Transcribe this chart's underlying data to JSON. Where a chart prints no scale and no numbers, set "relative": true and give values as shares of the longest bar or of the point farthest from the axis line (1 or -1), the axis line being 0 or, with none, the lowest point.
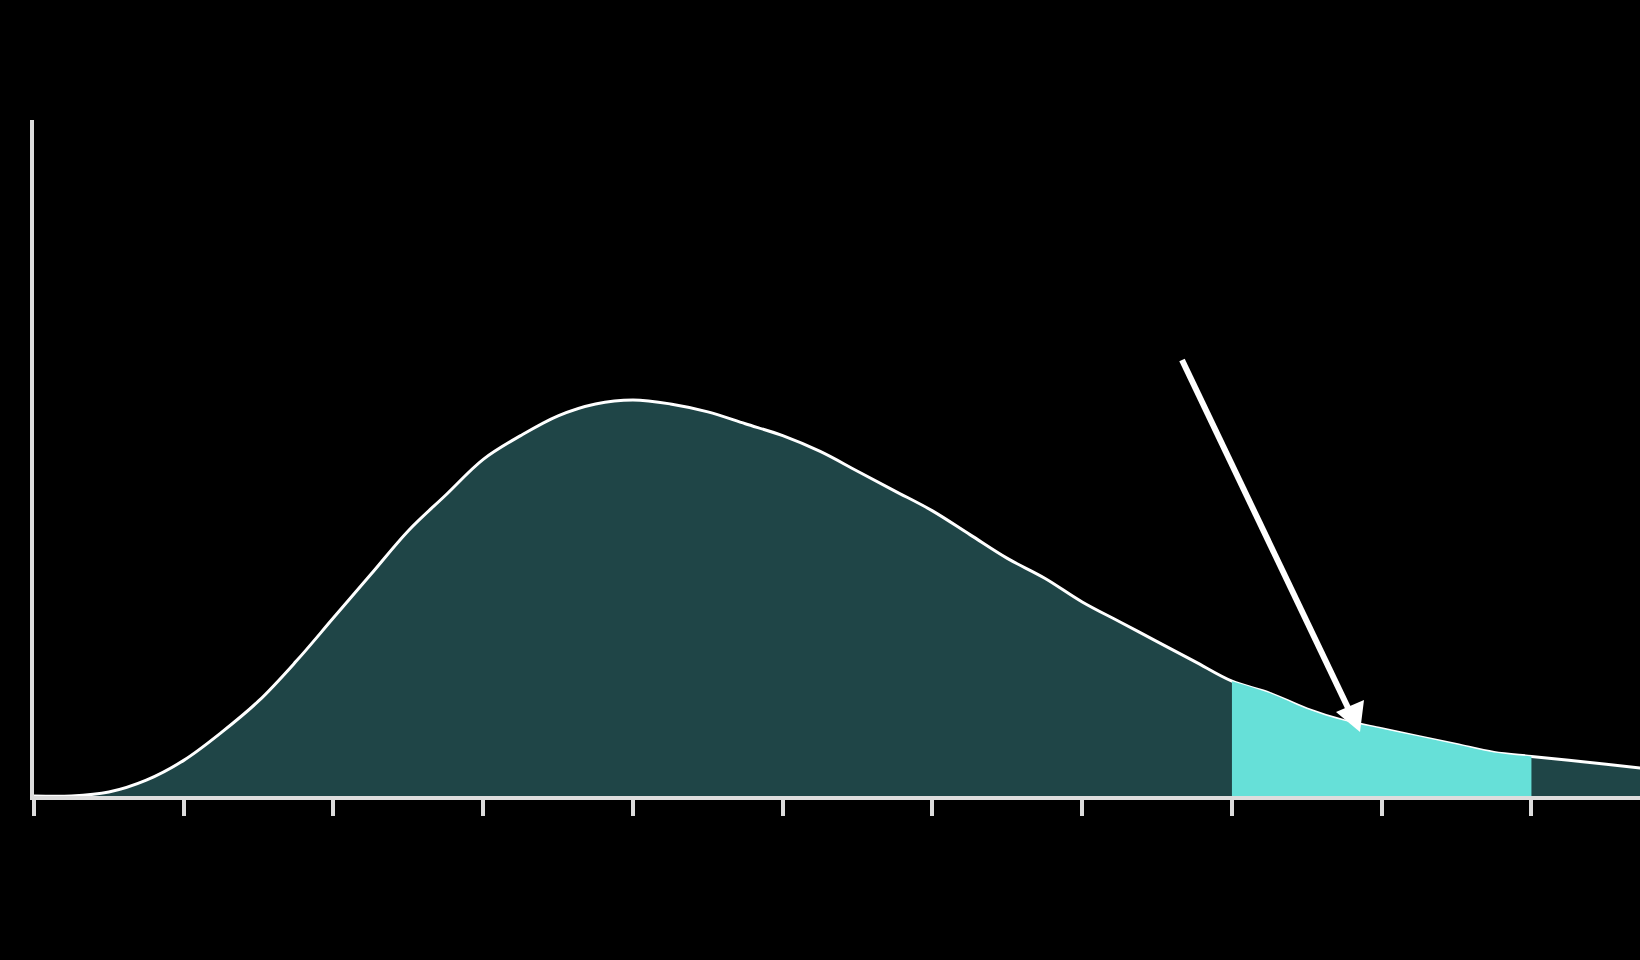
{
  "chart_data": {
    "type": "area",
    "relative": true,
    "categories": [
      null,
      null,
      null,
      null,
      null,
      null,
      null,
      null,
      null,
      null,
      null,
      null,
      null,
      null,
      null,
      null,
      null,
      null,
      null,
      null,
      null,
      null,
      null,
      null,
      null,
      null,
      null,
      null,
      null,
      null,
      null,
      null,
      null,
      null,
      null,
      null,
      null,
      null,
      null,
      null,
      null,
      null,
      null,
      null
    ],
    "series": [
      {
        "color": "#1f4547",
        "values": [
          0,
          0,
          0.01,
          0.04,
          0.09,
          0.16,
          0.24,
          0.34,
          0.45,
          0.56,
          0.67,
          0.76,
          0.85,
          0.91,
          0.96,
          0.99,
          1,
          0.99,
          0.97,
          0.94,
          0.91,
          0.87,
          0.82,
          0.77,
          0.72,
          0.66,
          0.6,
          0.55,
          0.49,
          0.44,
          0.39,
          0.34,
          0.29,
          0.26,
          0.22,
          0.19,
          0.17,
          0.15,
          0.13,
          0.11,
          0.1,
          0.09,
          0.08,
          0.07
        ]
      },
      {
        "color": "#66e0d8",
        "values": [
          null,
          null,
          null,
          null,
          null,
          null,
          null,
          null,
          null,
          null,
          null,
          null,
          null,
          null,
          null,
          null,
          null,
          null,
          null,
          null,
          null,
          null,
          null,
          null,
          null,
          null,
          null,
          null,
          null,
          null,
          null,
          null,
          0.29,
          0.26,
          0.22,
          0.19,
          0.17,
          0.15,
          0.13,
          0.11,
          0.1,
          null,
          null,
          null
        ]
      }
    ]
  }
}
